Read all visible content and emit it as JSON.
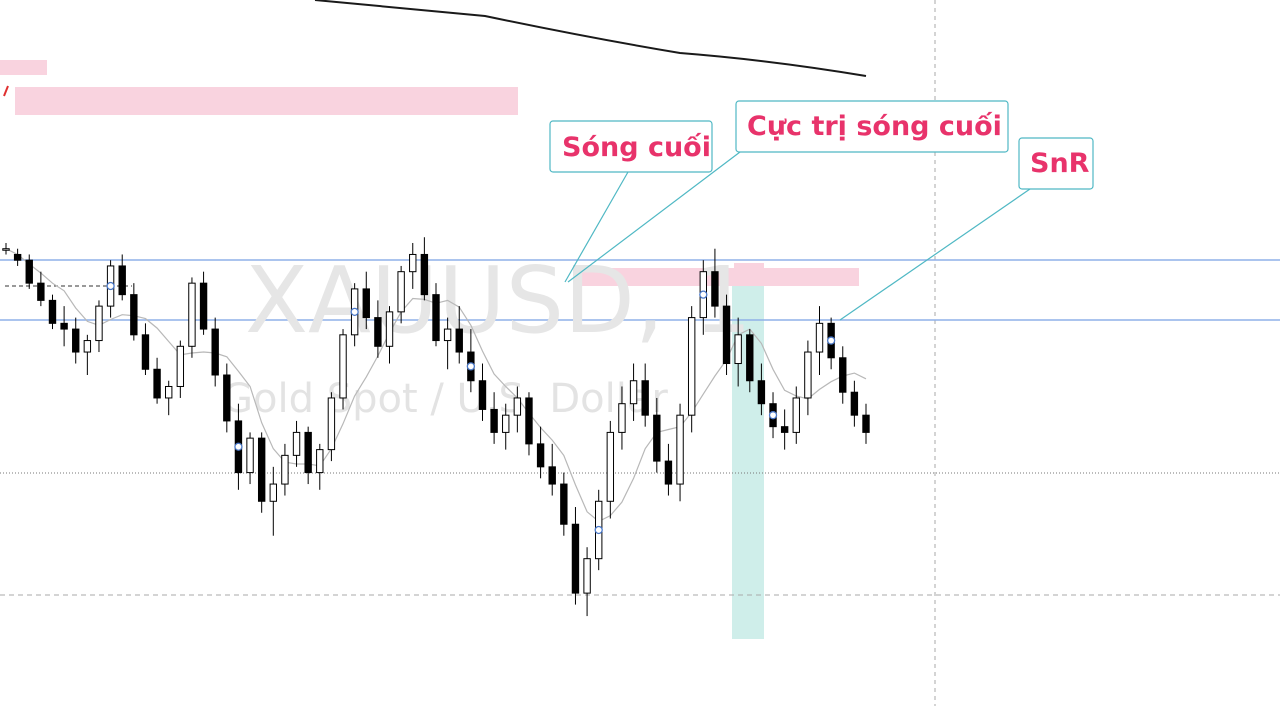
{
  "watermark": {
    "symbol": "XAUUSD, 1",
    "description": "Gold Spot / U.S. Dollar"
  },
  "annotations": [
    {
      "id": "song-cuoi",
      "text": "Sóng cuối"
    },
    {
      "id": "cuc-tri",
      "text": "Cực trị sóng cuối"
    },
    {
      "id": "snr",
      "text": "SnR"
    }
  ],
  "colors": {
    "zone_pink": "#f9d3df",
    "zone_teal": "#cfeeea",
    "sr_line": "#8fb0e8",
    "callout_border": "#4fb8c4",
    "callout_text": "#e8336b",
    "candle_up_fill": "#ffffff",
    "candle_down_fill": "#000000",
    "candle_outline": "#000000",
    "ma_fast": "#b8b8b8",
    "ma_slow": "#1a1a1a",
    "marker_ring": "#4a78c8"
  },
  "chart_data": {
    "type": "candlestick",
    "symbol": "XAUUSD",
    "timeframe": "1",
    "grid": false,
    "y_range": [
      0,
      100
    ],
    "candles_ohlc_relative": [
      [
        72,
        73,
        71,
        72
      ],
      [
        71,
        72,
        69,
        70
      ],
      [
        70,
        71,
        65,
        66
      ],
      [
        66,
        68,
        62,
        63
      ],
      [
        63,
        64,
        58,
        59
      ],
      [
        59,
        62,
        55,
        58
      ],
      [
        58,
        60,
        52,
        54
      ],
      [
        54,
        57,
        50,
        56
      ],
      [
        56,
        63,
        54,
        62
      ],
      [
        62,
        70,
        60,
        69
      ],
      [
        69,
        71,
        63,
        64
      ],
      [
        64,
        66,
        56,
        57
      ],
      [
        57,
        59,
        50,
        51
      ],
      [
        51,
        53,
        45,
        46
      ],
      [
        46,
        49,
        43,
        48
      ],
      [
        48,
        56,
        46,
        55
      ],
      [
        55,
        67,
        53,
        66
      ],
      [
        66,
        68,
        57,
        58
      ],
      [
        58,
        60,
        48,
        50
      ],
      [
        50,
        52,
        40,
        42
      ],
      [
        42,
        45,
        30,
        33
      ],
      [
        33,
        40,
        31,
        39
      ],
      [
        39,
        40,
        26,
        28
      ],
      [
        28,
        34,
        22,
        31
      ],
      [
        31,
        38,
        29,
        36
      ],
      [
        36,
        42,
        34,
        40
      ],
      [
        40,
        41,
        31,
        33
      ],
      [
        33,
        38,
        30,
        37
      ],
      [
        37,
        47,
        35,
        46
      ],
      [
        46,
        58,
        44,
        57
      ],
      [
        57,
        66,
        55,
        65
      ],
      [
        65,
        68,
        58,
        60
      ],
      [
        60,
        63,
        53,
        55
      ],
      [
        55,
        62,
        52,
        61
      ],
      [
        61,
        69,
        59,
        68
      ],
      [
        68,
        73,
        65,
        71
      ],
      [
        71,
        74,
        63,
        64
      ],
      [
        64,
        66,
        55,
        56
      ],
      [
        56,
        60,
        51,
        58
      ],
      [
        58,
        62,
        52,
        54
      ],
      [
        54,
        58,
        47,
        49
      ],
      [
        49,
        52,
        42,
        44
      ],
      [
        44,
        47,
        38,
        40
      ],
      [
        40,
        45,
        37,
        43
      ],
      [
        43,
        48,
        40,
        46
      ],
      [
        46,
        47,
        36,
        38
      ],
      [
        38,
        41,
        32,
        34
      ],
      [
        34,
        38,
        29,
        31
      ],
      [
        31,
        33,
        22,
        24
      ],
      [
        24,
        27,
        10,
        12
      ],
      [
        12,
        20,
        8,
        18
      ],
      [
        18,
        30,
        16,
        28
      ],
      [
        28,
        42,
        25,
        40
      ],
      [
        40,
        48,
        37,
        45
      ],
      [
        45,
        52,
        42,
        49
      ],
      [
        49,
        52,
        41,
        43
      ],
      [
        43,
        46,
        33,
        35
      ],
      [
        35,
        38,
        29,
        31
      ],
      [
        31,
        45,
        28,
        43
      ],
      [
        43,
        62,
        40,
        60
      ],
      [
        60,
        70,
        57,
        68
      ],
      [
        68,
        72,
        60,
        62
      ],
      [
        62,
        64,
        50,
        52
      ],
      [
        52,
        60,
        48,
        57
      ],
      [
        57,
        58,
        47,
        49
      ],
      [
        49,
        52,
        43,
        45
      ],
      [
        45,
        47,
        39,
        41
      ],
      [
        41,
        44,
        37,
        40
      ],
      [
        40,
        48,
        38,
        46
      ],
      [
        46,
        56,
        43,
        54
      ],
      [
        54,
        62,
        50,
        59
      ],
      [
        59,
        60,
        51,
        53
      ],
      [
        53,
        55,
        45,
        47
      ],
      [
        47,
        49,
        41,
        43
      ],
      [
        43,
        45,
        38,
        40
      ]
    ],
    "moving_averages": [
      {
        "type": "fast",
        "color": "#b8b8b8"
      },
      {
        "type": "slow",
        "color": "#1a1a1a"
      }
    ],
    "levels": [
      {
        "kind": "horizontal",
        "style": "solid",
        "color": "#8fb0e8"
      },
      {
        "kind": "horizontal",
        "style": "solid",
        "color": "#8fb0e8"
      },
      {
        "kind": "horizontal",
        "style": "dotted",
        "color": "#888888"
      },
      {
        "kind": "horizontal",
        "style": "dashed",
        "color": "#aaaaaa"
      }
    ]
  }
}
